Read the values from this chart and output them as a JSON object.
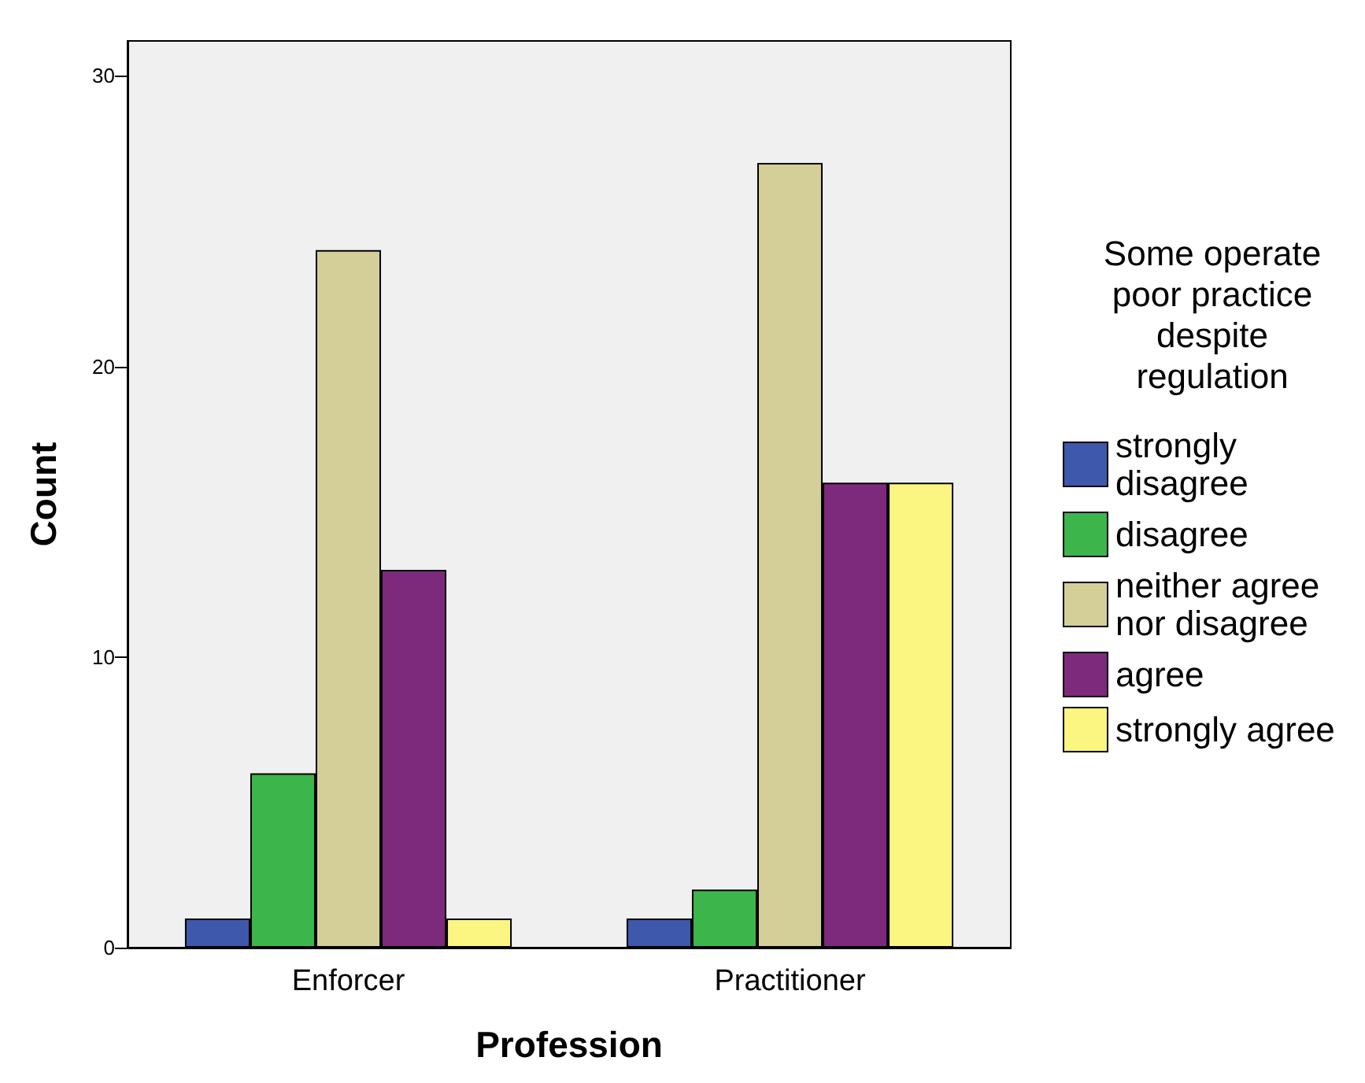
{
  "chart_data": {
    "type": "bar",
    "xlabel": "Profession",
    "ylabel": "Count",
    "legend_title": "Some operate\npoor practice\ndespite\nregulation",
    "categories": [
      "Enforcer",
      "Practitioner"
    ],
    "series": [
      {
        "name": "strongly disagree",
        "color": "#3e58ac",
        "values": [
          1,
          1
        ]
      },
      {
        "name": "disagree",
        "color": "#3cb64a",
        "values": [
          6,
          2
        ]
      },
      {
        "name": "neither agree nor disagree",
        "color": "#d4cf98",
        "values": [
          24,
          27
        ]
      },
      {
        "name": "agree",
        "color": "#7d2a7c",
        "values": [
          13,
          16
        ]
      },
      {
        "name": "strongly agree",
        "color": "#fbf582",
        "values": [
          1,
          16
        ]
      }
    ],
    "ylim": [
      0,
      31.2
    ],
    "yticks": [
      0,
      10,
      20,
      30
    ],
    "grid": false,
    "legend": "right"
  }
}
